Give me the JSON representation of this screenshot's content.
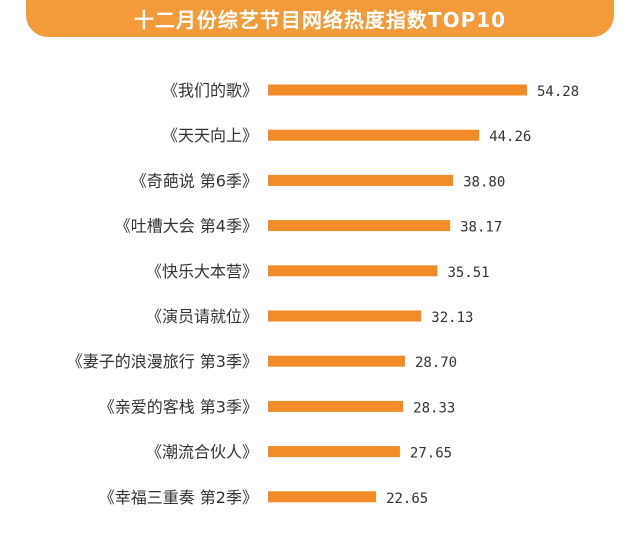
{
  "colors": {
    "accent": "#f39a3a",
    "bar": "#f28c28",
    "text": "#333333"
  },
  "chart_data": {
    "type": "bar",
    "orientation": "horizontal",
    "title": "十二月份综艺节目网络热度指数TOP10",
    "categories": [
      "《我们的歌》",
      "《天天向上》",
      "《奇葩说 第6季》",
      "《吐槽大会 第4季》",
      "《快乐大本营》",
      "《演员请就位》",
      "《妻子的浪漫旅行 第3季》",
      "《亲爱的客栈 第3季》",
      "《潮流合伙人》",
      "《幸福三重奏 第2季》"
    ],
    "value_labels": [
      "54.28",
      "44.26",
      "38.80",
      "38.17",
      "35.51",
      "32.13",
      "28.70",
      "28.33",
      "27.65",
      "22.65"
    ],
    "values": [
      54.28,
      44.26,
      38.8,
      38.17,
      35.51,
      32.13,
      28.7,
      28.33,
      27.65,
      22.65
    ],
    "xlabel": "",
    "ylabel": "",
    "grid": false,
    "legend": "none"
  }
}
